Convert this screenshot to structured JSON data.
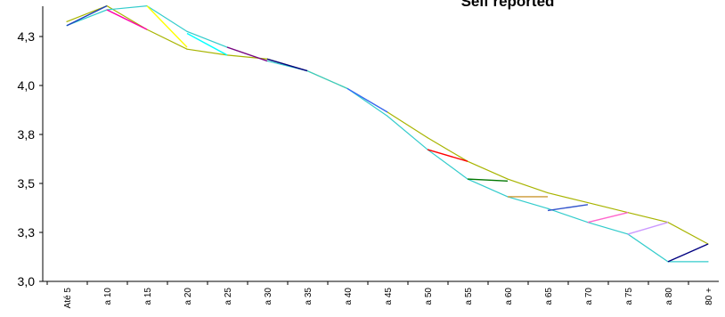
{
  "chart_data": {
    "type": "line",
    "title": "Self reported",
    "xlabel": "",
    "ylabel": "",
    "categories": [
      "Até 5",
      "a 10",
      "a 15",
      "a 20",
      "a 25",
      "a 30",
      "a 35",
      "a 40",
      "a 45",
      "a 50",
      "a 55",
      "a 60",
      "a 65",
      "a 70",
      "a 75",
      "a 80",
      "80 +"
    ],
    "y_ticks": [
      "3,0",
      "3,3",
      "3,5",
      "3,8",
      "4,0",
      "4,3"
    ],
    "ylim": [
      3.0,
      4.35
    ],
    "grid": false,
    "legend": "none",
    "series": [
      {
        "color": "#a8b400",
        "values": [
          4.32,
          4.4,
          4.28,
          4.18,
          4.15,
          4.13,
          4.07,
          3.98,
          3.86,
          3.73,
          3.61,
          3.52,
          3.45,
          3.4,
          3.35,
          3.3,
          3.19
        ]
      },
      {
        "color": "#33cccc",
        "values": [
          4.3,
          4.38,
          4.4,
          4.27,
          4.19,
          4.12,
          4.07,
          3.98,
          3.84,
          3.67,
          3.52,
          3.43,
          3.37,
          3.3,
          3.24,
          3.1,
          3.1
        ]
      }
    ],
    "accents": [
      {
        "color": "#1f3fbf",
        "from": [
          0,
          4.3
        ],
        "to": [
          1,
          4.4
        ]
      },
      {
        "color": "#ff00aa",
        "from": [
          1,
          4.38
        ],
        "to": [
          2,
          4.28
        ]
      },
      {
        "color": "#ffff00",
        "from": [
          2,
          4.4
        ],
        "to": [
          3,
          4.19
        ]
      },
      {
        "color": "#00ffff",
        "from": [
          3,
          4.26
        ],
        "to": [
          4,
          4.15
        ]
      },
      {
        "color": "#800080",
        "from": [
          4,
          4.19
        ],
        "to": [
          5,
          4.12
        ]
      },
      {
        "color": "#000080",
        "from": [
          5,
          4.13
        ],
        "to": [
          6,
          4.07
        ]
      },
      {
        "color": "#3366ff",
        "from": [
          7,
          3.98
        ],
        "to": [
          8,
          3.86
        ]
      },
      {
        "color": "#ff0000",
        "from": [
          9,
          3.67
        ],
        "to": [
          10,
          3.61
        ]
      },
      {
        "color": "#007700",
        "from": [
          10,
          3.52
        ],
        "to": [
          11,
          3.51
        ]
      },
      {
        "color": "#cc9933",
        "from": [
          11,
          3.43
        ],
        "to": [
          12,
          3.43
        ]
      },
      {
        "color": "#3355cc",
        "from": [
          12,
          3.36
        ],
        "to": [
          13,
          3.39
        ]
      },
      {
        "color": "#ff66cc",
        "from": [
          13,
          3.3
        ],
        "to": [
          14,
          3.35
        ]
      },
      {
        "color": "#cc99ff",
        "from": [
          14,
          3.24
        ],
        "to": [
          15,
          3.3
        ]
      },
      {
        "color": "#000080",
        "from": [
          15,
          3.1
        ],
        "to": [
          16,
          3.19
        ]
      }
    ]
  }
}
